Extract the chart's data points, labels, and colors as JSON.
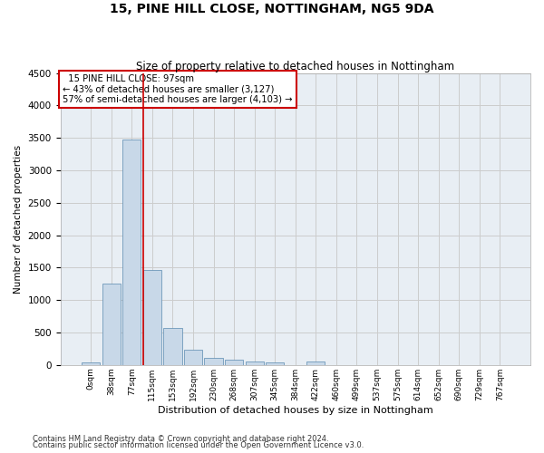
{
  "title1": "15, PINE HILL CLOSE, NOTTINGHAM, NG5 9DA",
  "title2": "Size of property relative to detached houses in Nottingham",
  "xlabel": "Distribution of detached houses by size in Nottingham",
  "ylabel": "Number of detached properties",
  "footnote1": "Contains HM Land Registry data © Crown copyright and database right 2024.",
  "footnote2": "Contains public sector information licensed under the Open Government Licence v3.0.",
  "bar_labels": [
    "0sqm",
    "38sqm",
    "77sqm",
    "115sqm",
    "153sqm",
    "192sqm",
    "230sqm",
    "268sqm",
    "307sqm",
    "345sqm",
    "384sqm",
    "422sqm",
    "460sqm",
    "499sqm",
    "537sqm",
    "575sqm",
    "614sqm",
    "652sqm",
    "690sqm",
    "729sqm",
    "767sqm"
  ],
  "bar_values": [
    35,
    1260,
    3480,
    1460,
    575,
    240,
    115,
    80,
    50,
    40,
    0,
    55,
    0,
    0,
    0,
    0,
    0,
    0,
    0,
    0,
    0
  ],
  "bar_color": "#c8d8e8",
  "bar_edge_color": "#5a8ab0",
  "ylim": [
    0,
    4500
  ],
  "yticks": [
    0,
    500,
    1000,
    1500,
    2000,
    2500,
    3000,
    3500,
    4000,
    4500
  ],
  "property_line_x": 2.57,
  "annotation_text1": "  15 PINE HILL CLOSE: 97sqm",
  "annotation_text2": "← 43% of detached houses are smaller (3,127)",
  "annotation_text3": "57% of semi-detached houses are larger (4,103) →",
  "annotation_box_color": "#ffffff",
  "annotation_box_edge": "#cc0000",
  "vline_color": "#cc0000",
  "grid_color": "#cccccc",
  "background_color": "#e8eef4"
}
